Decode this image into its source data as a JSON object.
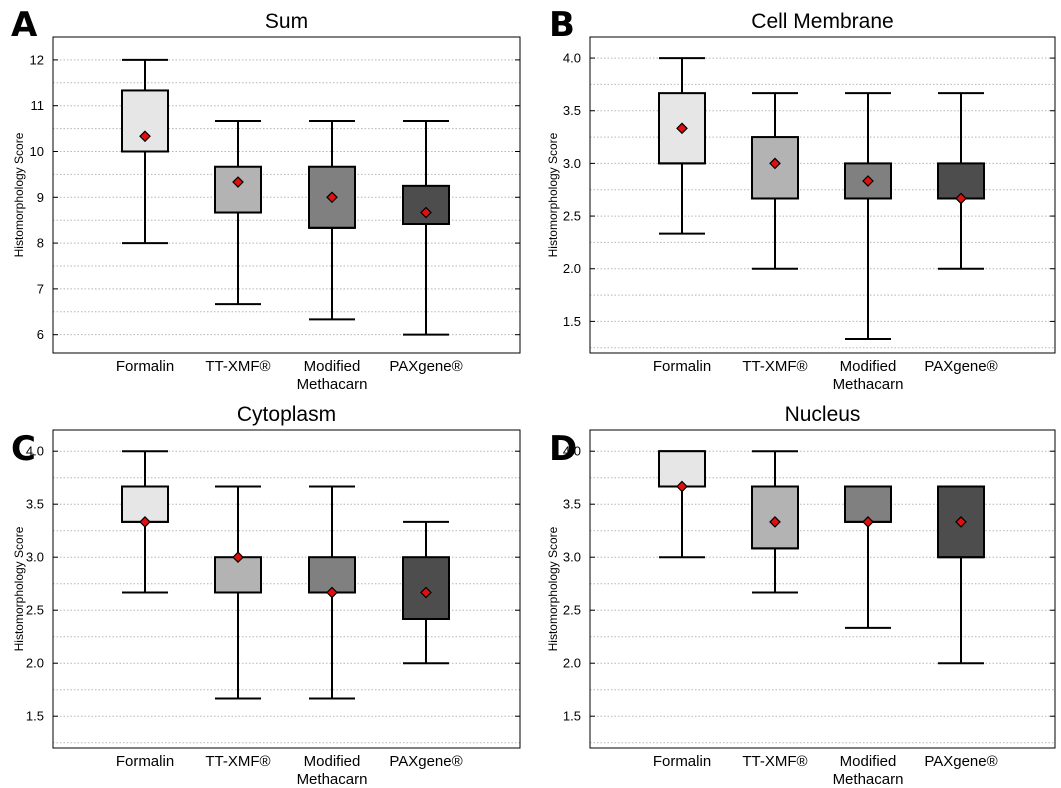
{
  "figure": {
    "ylabel": "Histomorphology Score",
    "categories": [
      "Formalin",
      "TT-XMF®",
      [
        "Modified",
        "Methacarn"
      ],
      "PAXgene®"
    ],
    "box_colors": [
      "#e6e6e6",
      "#b3b3b3",
      "#808080",
      "#4d4d4d"
    ],
    "mean_marker_color": "#e0100f"
  },
  "chart_data": [
    {
      "panel": "A",
      "type": "box",
      "title": "Sum",
      "ylabel": "Histomorphology Score",
      "ylim": [
        5.6,
        12.5
      ],
      "yticks": [
        6,
        7,
        8,
        9,
        10,
        11,
        12
      ],
      "ytick_labels": [
        "6",
        "7",
        "8",
        "9",
        "10",
        "11",
        "12"
      ],
      "minor_step": 0.5,
      "series": [
        {
          "category": "Formalin",
          "min": 8.0,
          "q1": 10.0,
          "median": 10.0,
          "q3": 11.333,
          "max": 12.0,
          "mean": 10.333
        },
        {
          "category": "TT-XMF®",
          "min": 6.667,
          "q1": 8.667,
          "median": 8.667,
          "q3": 9.667,
          "max": 10.667,
          "mean": 9.333
        },
        {
          "category": "Modified Methacarn",
          "min": 6.333,
          "q1": 8.333,
          "median": 8.333,
          "q3": 9.667,
          "max": 10.667,
          "mean": 9.0
        },
        {
          "category": "PAXgene®",
          "min": 6.0,
          "q1": 8.417,
          "median": 8.417,
          "q3": 9.25,
          "max": 10.667,
          "mean": 8.667
        }
      ]
    },
    {
      "panel": "B",
      "type": "box",
      "title": "Cell Membrane",
      "ylabel": "Histomorphology Score",
      "ylim": [
        1.2,
        4.2
      ],
      "yticks": [
        1.5,
        2.0,
        2.5,
        3.0,
        3.5,
        4.0
      ],
      "ytick_labels": [
        "1.5",
        "2.0",
        "2.5",
        "3.0",
        "3.5",
        "4.0"
      ],
      "minor_step": 0.25,
      "series": [
        {
          "category": "Formalin",
          "min": 2.333,
          "q1": 3.0,
          "median": 3.0,
          "q3": 3.667,
          "max": 4.0,
          "mean": 3.333
        },
        {
          "category": "TT-XMF®",
          "min": 2.0,
          "q1": 2.667,
          "median": 2.667,
          "q3": 3.25,
          "max": 3.667,
          "mean": 3.0
        },
        {
          "category": "Modified Methacarn",
          "min": 1.333,
          "q1": 2.667,
          "median": 2.667,
          "q3": 3.0,
          "max": 3.667,
          "mean": 2.833
        },
        {
          "category": "PAXgene®",
          "min": 2.0,
          "q1": 2.667,
          "median": 2.667,
          "q3": 3.0,
          "max": 3.667,
          "mean": 2.667
        }
      ]
    },
    {
      "panel": "C",
      "type": "box",
      "title": "Cytoplasm",
      "ylabel": "Histomorphology Score",
      "ylim": [
        1.2,
        4.2
      ],
      "yticks": [
        1.5,
        2.0,
        2.5,
        3.0,
        3.5,
        4.0
      ],
      "ytick_labels": [
        "1.5",
        "2.0",
        "2.5",
        "3.0",
        "3.5",
        "4.0"
      ],
      "minor_step": 0.25,
      "series": [
        {
          "category": "Formalin",
          "min": 2.667,
          "q1": 3.333,
          "median": 3.333,
          "q3": 3.667,
          "max": 4.0,
          "mean": 3.333
        },
        {
          "category": "TT-XMF®",
          "min": 1.667,
          "q1": 2.667,
          "median": 2.667,
          "q3": 3.0,
          "max": 3.667,
          "mean": 3.0
        },
        {
          "category": "Modified Methacarn",
          "min": 1.667,
          "q1": 2.667,
          "median": 2.667,
          "q3": 3.0,
          "max": 3.667,
          "mean": 2.667
        },
        {
          "category": "PAXgene®",
          "min": 2.0,
          "q1": 2.417,
          "median": 2.417,
          "q3": 3.0,
          "max": 3.333,
          "mean": 2.667
        }
      ]
    },
    {
      "panel": "D",
      "type": "box",
      "title": "Nucleus",
      "ylabel": "Histomorphology Score",
      "ylim": [
        1.2,
        4.2
      ],
      "yticks": [
        1.5,
        2.0,
        2.5,
        3.0,
        3.5,
        4.0
      ],
      "ytick_labels": [
        "1.5",
        "2.0",
        "2.5",
        "3.0",
        "3.5",
        "4.0"
      ],
      "minor_step": 0.25,
      "series": [
        {
          "category": "Formalin",
          "min": 3.0,
          "q1": 3.667,
          "median": 3.667,
          "q3": 4.0,
          "max": 4.0,
          "mean": 3.667
        },
        {
          "category": "TT-XMF®",
          "min": 2.667,
          "q1": 3.083,
          "median": 3.083,
          "q3": 3.667,
          "max": 4.0,
          "mean": 3.333
        },
        {
          "category": "Modified Methacarn",
          "min": 2.333,
          "q1": 3.333,
          "median": 3.333,
          "q3": 3.667,
          "max": 3.667,
          "mean": 3.333
        },
        {
          "category": "PAXgene®",
          "min": 2.0,
          "q1": 3.0,
          "median": 3.0,
          "q3": 3.667,
          "max": 3.667,
          "mean": 3.333
        }
      ]
    }
  ]
}
